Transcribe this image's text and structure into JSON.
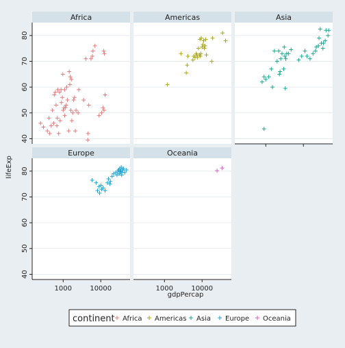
{
  "chart_data": {
    "type": "scatter",
    "xlabel": "gdpPercap",
    "ylabel": "lifeExp",
    "x_scale": "log",
    "xlim": [
      150,
      60000
    ],
    "ylim": [
      38,
      85
    ],
    "x_ticks": [
      1000,
      10000
    ],
    "x_tick_labels": [
      "1000",
      "10000"
    ],
    "y_ticks": [
      40,
      50,
      60,
      70,
      80
    ],
    "y_tick_labels": [
      "40",
      "50",
      "60",
      "70",
      "80"
    ],
    "grid": true,
    "legend": {
      "title": "continent",
      "placement": "bottom"
    },
    "series": [
      {
        "name": "Africa",
        "color": "#e07b7b",
        "points": [
          [
            250,
            46
          ],
          [
            300,
            44.5
          ],
          [
            380,
            43
          ],
          [
            420,
            48
          ],
          [
            440,
            42
          ],
          [
            480,
            45
          ],
          [
            520,
            51
          ],
          [
            560,
            46
          ],
          [
            580,
            57
          ],
          [
            620,
            58
          ],
          [
            650,
            53
          ],
          [
            680,
            45
          ],
          [
            700,
            48
          ],
          [
            720,
            59
          ],
          [
            760,
            42
          ],
          [
            800,
            58
          ],
          [
            830,
            47
          ],
          [
            880,
            59
          ],
          [
            900,
            54
          ],
          [
            950,
            56
          ],
          [
            980,
            65
          ],
          [
            1000,
            51
          ],
          [
            1050,
            52
          ],
          [
            1100,
            49
          ],
          [
            1100,
            59
          ],
          [
            1150,
            52
          ],
          [
            1200,
            53
          ],
          [
            1250,
            60
          ],
          [
            1300,
            55
          ],
          [
            1400,
            43
          ],
          [
            1450,
            66
          ],
          [
            1500,
            61
          ],
          [
            1550,
            64
          ],
          [
            1600,
            51
          ],
          [
            1650,
            63
          ],
          [
            1700,
            47
          ],
          [
            1800,
            50
          ],
          [
            1900,
            55
          ],
          [
            2000,
            56
          ],
          [
            2100,
            43
          ],
          [
            2200,
            51
          ],
          [
            2500,
            50
          ],
          [
            2600,
            59
          ],
          [
            3500,
            55
          ],
          [
            4000,
            71
          ],
          [
            4500,
            39.5
          ],
          [
            4600,
            42
          ],
          [
            4800,
            53
          ],
          [
            5500,
            71
          ],
          [
            6000,
            72
          ],
          [
            6200,
            74
          ],
          [
            7000,
            76
          ],
          [
            9000,
            49
          ],
          [
            10500,
            50
          ],
          [
            11500,
            52
          ],
          [
            12000,
            74
          ],
          [
            12500,
            73
          ],
          [
            13000,
            57
          ],
          [
            12200,
            51
          ]
        ]
      },
      {
        "name": "Americas",
        "color": "#a8a61b",
        "points": [
          [
            1200,
            61
          ],
          [
            2750,
            73
          ],
          [
            3800,
            65.5
          ],
          [
            4000,
            68.5
          ],
          [
            4200,
            72
          ],
          [
            5700,
            70.5
          ],
          [
            6000,
            72
          ],
          [
            6500,
            71.5
          ],
          [
            7000,
            73
          ],
          [
            7200,
            72.5
          ],
          [
            7500,
            71.5
          ],
          [
            8000,
            75
          ],
          [
            8500,
            72.5
          ],
          [
            8800,
            78.5
          ],
          [
            9000,
            72
          ],
          [
            9200,
            73
          ],
          [
            9500,
            79
          ],
          [
            10000,
            75.5
          ],
          [
            10500,
            76.5
          ],
          [
            11000,
            78
          ],
          [
            11500,
            75
          ],
          [
            12000,
            76
          ],
          [
            12500,
            78.5
          ],
          [
            13000,
            72.5
          ],
          [
            18000,
            70
          ],
          [
            19000,
            79
          ],
          [
            35000,
            81
          ],
          [
            42000,
            78
          ]
        ]
      },
      {
        "name": "Asia",
        "color": "#1aa88f",
        "points": [
          [
            900,
            43.8
          ],
          [
            800,
            62
          ],
          [
            900,
            64
          ],
          [
            1000,
            63
          ],
          [
            1200,
            64
          ],
          [
            1400,
            67
          ],
          [
            1500,
            60
          ],
          [
            1700,
            74
          ],
          [
            2000,
            70
          ],
          [
            2200,
            74
          ],
          [
            2300,
            65
          ],
          [
            2400,
            66
          ],
          [
            2500,
            71
          ],
          [
            2700,
            73
          ],
          [
            3000,
            67
          ],
          [
            3100,
            75.5
          ],
          [
            3200,
            72
          ],
          [
            3300,
            59.5
          ],
          [
            3400,
            71
          ],
          [
            3600,
            73
          ],
          [
            4000,
            73
          ],
          [
            4700,
            74.5
          ],
          [
            7500,
            70.5
          ],
          [
            9000,
            72
          ],
          [
            11000,
            74
          ],
          [
            12500,
            72
          ],
          [
            15000,
            71
          ],
          [
            18000,
            73
          ],
          [
            21000,
            74
          ],
          [
            25000,
            76
          ],
          [
            28000,
            82.5
          ],
          [
            30000,
            77
          ],
          [
            34000,
            77
          ],
          [
            38000,
            78
          ],
          [
            40000,
            82
          ],
          [
            45000,
            80
          ],
          [
            47000,
            82
          ],
          [
            22000,
            75.5
          ],
          [
            26000,
            79
          ],
          [
            33000,
            75
          ]
        ]
      },
      {
        "name": "Europe",
        "color": "#1fa3cf",
        "points": [
          [
            5900,
            76.5
          ],
          [
            7500,
            75.5
          ],
          [
            8200,
            72.5
          ],
          [
            9000,
            74
          ],
          [
            9300,
            71.5
          ],
          [
            10000,
            74.5
          ],
          [
            10500,
            73
          ],
          [
            11500,
            73.5
          ],
          [
            13000,
            72.5
          ],
          [
            15000,
            75.5
          ],
          [
            16000,
            77
          ],
          [
            17500,
            75
          ],
          [
            18000,
            76
          ],
          [
            20000,
            78
          ],
          [
            22000,
            79
          ],
          [
            25000,
            79.5
          ],
          [
            27000,
            78.5
          ],
          [
            28500,
            80
          ],
          [
            30000,
            80.5
          ],
          [
            31000,
            79
          ],
          [
            32000,
            81
          ],
          [
            33000,
            79.8
          ],
          [
            34000,
            80
          ],
          [
            35000,
            81.5
          ],
          [
            36000,
            78.5
          ],
          [
            36500,
            79.5
          ],
          [
            38000,
            80.5
          ],
          [
            40000,
            81
          ],
          [
            43000,
            79.5
          ],
          [
            48000,
            80.5
          ]
        ]
      },
      {
        "name": "Oceania",
        "color": "#d65fd0",
        "points": [
          [
            25000,
            80.2
          ],
          [
            34000,
            81.2
          ]
        ]
      }
    ]
  }
}
